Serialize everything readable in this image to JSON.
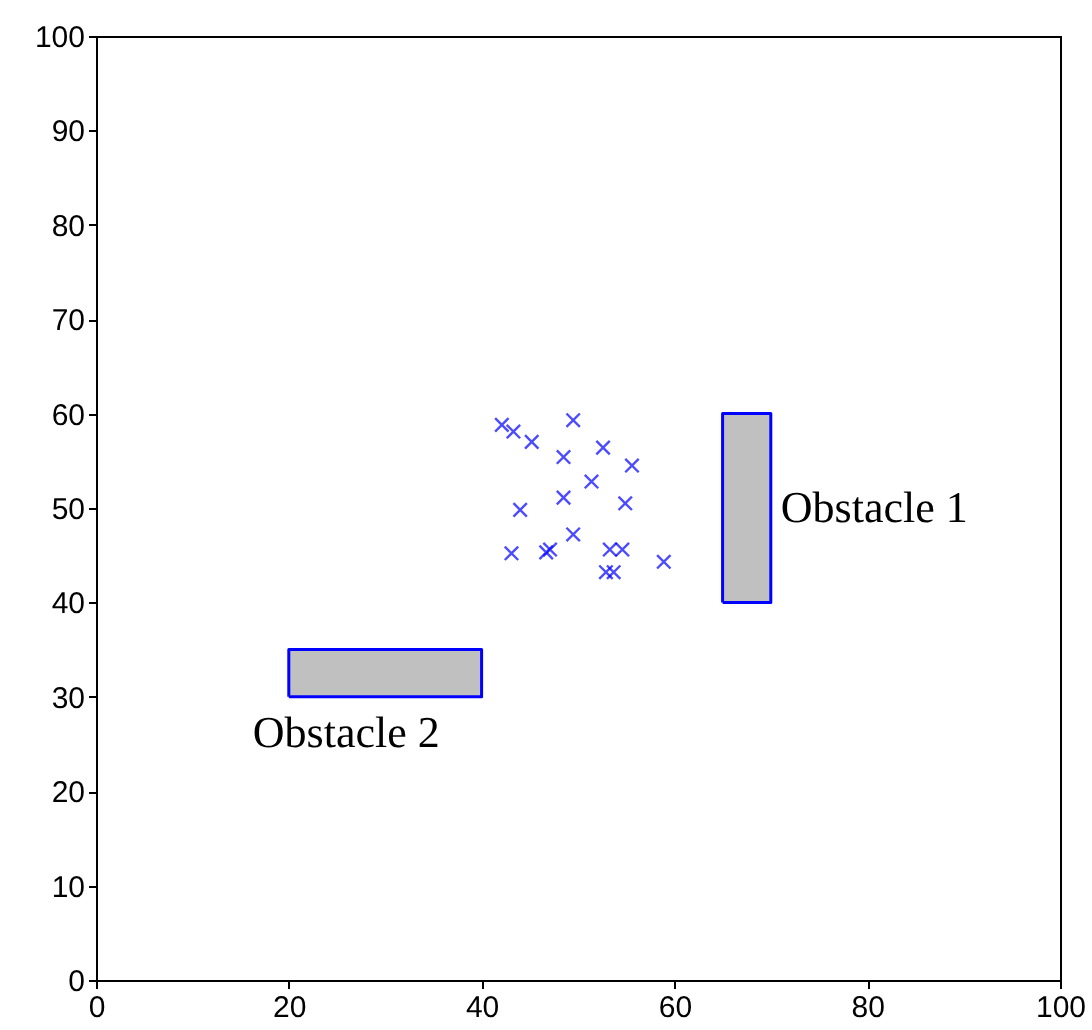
{
  "chart_data": {
    "type": "scatter",
    "xlim": [
      0,
      100
    ],
    "ylim": [
      0,
      100
    ],
    "xticks": [
      0,
      20,
      40,
      60,
      80,
      100
    ],
    "yticks": [
      0,
      10,
      20,
      30,
      40,
      50,
      60,
      70,
      80,
      90,
      100
    ],
    "grid": false,
    "series": [
      {
        "color": "#0000ff",
        "marker": "cross",
        "x": [
          42.1,
          43.3,
          45.2,
          49.5,
          48.5,
          52.6,
          55.6,
          51.4,
          48.5,
          54.9,
          44.0,
          49.5,
          43.1,
          46.7,
          47.1,
          53.3,
          54.6,
          52.9,
          53.7,
          58.9
        ],
        "values": [
          58.8,
          58.1,
          57.0,
          59.3,
          55.4,
          56.4,
          54.5,
          52.8,
          51.1,
          50.5,
          49.8,
          47.2,
          45.2,
          45.3,
          45.6,
          45.6,
          45.6,
          43.2,
          43.2,
          44.3
        ]
      },
      {
        "type": "area",
        "color": "#c0c0c0",
        "x": [
          65,
          65,
          70,
          70,
          65
        ],
        "values": [
          40,
          60,
          60,
          40,
          40
        ]
      },
      {
        "type": "area",
        "color": "#c0c0c0",
        "x": [
          20,
          20,
          40,
          40,
          20
        ],
        "values": [
          30,
          35,
          35,
          30,
          30
        ]
      }
    ],
    "annotations": [
      "Obstacle 1",
      "Obstacle 2"
    ]
  }
}
